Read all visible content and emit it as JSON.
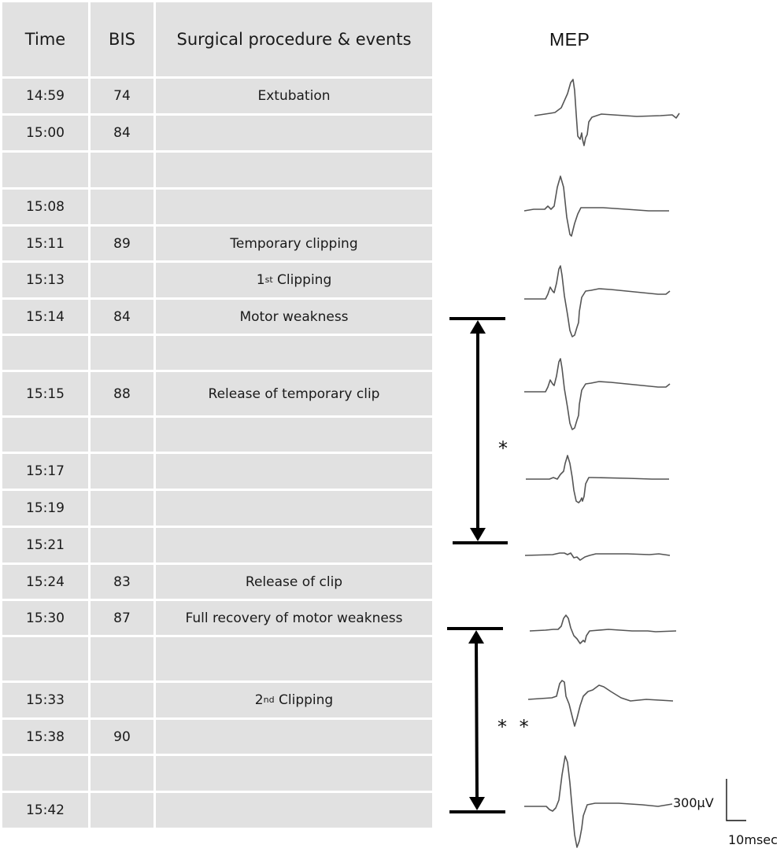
{
  "table": {
    "headers": {
      "time": "Time",
      "bis": "BIS",
      "events": "Surgical procedure & events"
    },
    "rows": [
      {
        "time": "14:59",
        "bis": "74",
        "event": "Extubation",
        "sup": "",
        "event_rest": ""
      },
      {
        "time": "15:00",
        "bis": "84",
        "event": "",
        "sup": "",
        "event_rest": ""
      },
      {
        "time": "",
        "bis": "",
        "event": "",
        "sup": "",
        "event_rest": ""
      },
      {
        "time": "15:08",
        "bis": "",
        "event": "",
        "sup": "",
        "event_rest": ""
      },
      {
        "time": "15:11",
        "bis": "89",
        "event": "Temporary clipping",
        "sup": "",
        "event_rest": ""
      },
      {
        "time": "15:13",
        "bis": "",
        "event": "1",
        "sup": "st",
        "event_rest": " Clipping"
      },
      {
        "time": "15:14",
        "bis": "84",
        "event": "Motor weakness",
        "sup": "",
        "event_rest": ""
      },
      {
        "time": "",
        "bis": "",
        "event": "",
        "sup": "",
        "event_rest": ""
      },
      {
        "time": "15:15",
        "bis": "88",
        "event": "Release of temporary clip",
        "sup": "",
        "event_rest": ""
      },
      {
        "time": "",
        "bis": "",
        "event": "",
        "sup": "",
        "event_rest": ""
      },
      {
        "time": "15:17",
        "bis": "",
        "event": "",
        "sup": "",
        "event_rest": ""
      },
      {
        "time": "15:19",
        "bis": "",
        "event": "",
        "sup": "",
        "event_rest": ""
      },
      {
        "time": "15:21",
        "bis": "",
        "event": "",
        "sup": "",
        "event_rest": ""
      },
      {
        "time": "15:24",
        "bis": "83",
        "event": "Release of clip",
        "sup": "",
        "event_rest": ""
      },
      {
        "time": "15:30",
        "bis": "87",
        "event": "Full recovery of motor weakness",
        "sup": "",
        "event_rest": ""
      },
      {
        "time": "",
        "bis": "",
        "event": "",
        "sup": "",
        "event_rest": ""
      },
      {
        "time": "15:33",
        "bis": "",
        "event": "2",
        "sup": "nd",
        "event_rest": " Clipping"
      },
      {
        "time": "15:38",
        "bis": "90",
        "event": "",
        "sup": "",
        "event_rest": ""
      },
      {
        "time": "",
        "bis": "",
        "event": "",
        "sup": "",
        "event_rest": ""
      },
      {
        "time": "15:42",
        "bis": "",
        "event": "",
        "sup": "",
        "event_rest": ""
      }
    ]
  },
  "mep": {
    "title": "MEP",
    "traces": [
      {
        "name": "mep-trace-1",
        "amplitude": "large"
      },
      {
        "name": "mep-trace-2",
        "amplitude": "large"
      },
      {
        "name": "mep-trace-3",
        "amplitude": "large"
      },
      {
        "name": "mep-trace-4",
        "amplitude": "large"
      },
      {
        "name": "mep-trace-5",
        "amplitude": "reduced"
      },
      {
        "name": "mep-trace-6",
        "amplitude": "near-flat"
      },
      {
        "name": "mep-trace-7",
        "amplitude": "small"
      },
      {
        "name": "mep-trace-8",
        "amplitude": "medium"
      },
      {
        "name": "mep-trace-9",
        "amplitude": "large"
      }
    ],
    "annotations": {
      "interval_1": "*",
      "interval_2": "* *"
    },
    "scale": {
      "voltage": "300μV",
      "time": "10msec"
    }
  },
  "colors": {
    "cell": "#e1e1e1",
    "trace": "#555555",
    "arrow": "#000000"
  }
}
